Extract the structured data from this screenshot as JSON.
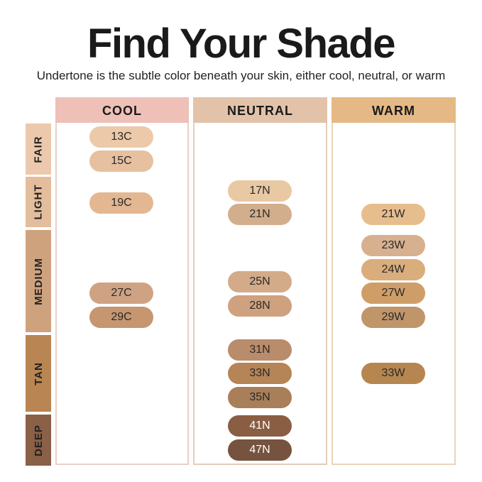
{
  "title": "Find Your Shade",
  "subtitle": "Undertone is the subtle color beneath your skin, either cool, neutral, or warm",
  "columns": [
    {
      "label": "COOL",
      "color": "#eec0b7",
      "border": "#e9cfc8"
    },
    {
      "label": "NEUTRAL",
      "color": "#e2c3aa",
      "border": "#e3cdbd"
    },
    {
      "label": "WARM",
      "color": "#e5b985",
      "border": "#ead3b8"
    }
  ],
  "rows": [
    {
      "label": "FAIR",
      "color": "#ecc9ac"
    },
    {
      "label": "LIGHT",
      "color": "#e4bd9c"
    },
    {
      "label": "MEDIUM",
      "color": "#cfa27e"
    },
    {
      "label": "TAN",
      "color": "#b98553"
    },
    {
      "label": "DEEP",
      "color": "#8a6046"
    }
  ],
  "shades": [
    {
      "label": "13C",
      "color": "#ecc9a8"
    },
    {
      "label": "15C",
      "color": "#e6c09f"
    },
    {
      "label": "19C",
      "color": "#e2b792"
    },
    {
      "label": "27C",
      "color": "#cfa283"
    },
    {
      "label": "29C",
      "color": "#c69670"
    },
    {
      "label": "17N",
      "color": "#e8c9a4"
    },
    {
      "label": "21N",
      "color": "#d3ae8d"
    },
    {
      "label": "25N",
      "color": "#d3ab88"
    },
    {
      "label": "28N",
      "color": "#cfa17e"
    },
    {
      "label": "31N",
      "color": "#b98c6c"
    },
    {
      "label": "33N",
      "color": "#b58457"
    },
    {
      "label": "35N",
      "color": "#a97f59"
    },
    {
      "label": "41N",
      "color": "#8a5e43"
    },
    {
      "label": "47N",
      "color": "#76533e"
    },
    {
      "label": "21W",
      "color": "#e6bd8d"
    },
    {
      "label": "23W",
      "color": "#d6b08f"
    },
    {
      "label": "24W",
      "color": "#d9ae7c"
    },
    {
      "label": "27W",
      "color": "#cf9e68"
    },
    {
      "label": "29W",
      "color": "#c0956a"
    },
    {
      "label": "33W",
      "color": "#b68650"
    }
  ]
}
